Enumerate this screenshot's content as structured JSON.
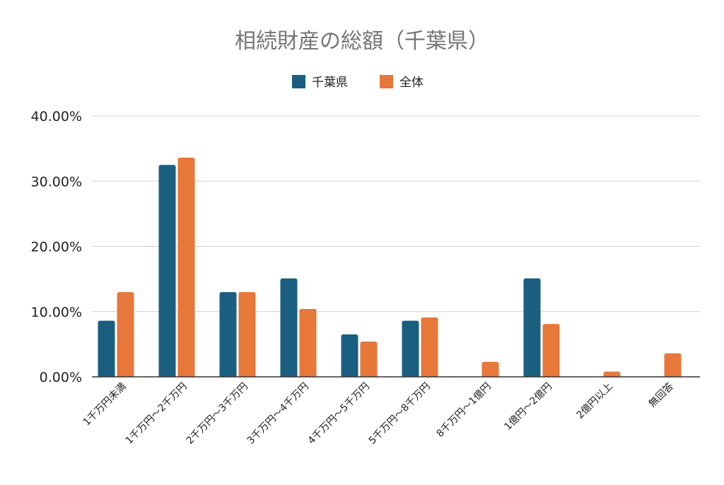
{
  "chart_data": {
    "type": "bar",
    "title": "相続財産の総額（千葉県）",
    "xlabel": "",
    "ylabel": "",
    "ylim": [
      0,
      40
    ],
    "y_ticks": [
      "0.00%",
      "10.00%",
      "20.00%",
      "30.00%",
      "40.00%"
    ],
    "grid": true,
    "legend_position": "top-center",
    "categories": [
      "1千万円未満",
      "1千万円～2千万円",
      "2千万円～3千万円",
      "3千万円～4千万円",
      "4千万円～5千万円",
      "5千万円～8千万円",
      "8千万円～1億円",
      "1億円～2億円",
      "2億円以上",
      "無回答"
    ],
    "series": [
      {
        "name": "千葉県",
        "color": "#1a5f80",
        "values": [
          8.6,
          32.5,
          13.0,
          15.1,
          6.5,
          8.6,
          0,
          15.1,
          0,
          0
        ]
      },
      {
        "name": "全体",
        "color": "#e8773a",
        "values": [
          13.0,
          33.6,
          13.0,
          10.4,
          5.4,
          9.1,
          2.3,
          8.1,
          0.8,
          3.6
        ]
      }
    ]
  }
}
